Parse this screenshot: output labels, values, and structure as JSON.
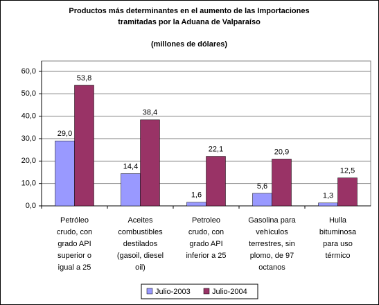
{
  "chart_data": {
    "type": "bar",
    "title": "Productos más determinantes en el aumento de las Importaciones tramitadas por la Aduana de Valparaíso",
    "subtitle": "(millones de dólares)",
    "categories": [
      "Petróleo crudo, con grado API superior o igual a 25",
      "Aceites combustibles destilados (gasoil, diesel oil)",
      "Petroleo crudo, con grado API inferior a 25",
      "Gasolina para vehículos terrestres, sin plomo, de 97 octanos",
      "Hulla bituminosa para uso térmico"
    ],
    "series": [
      {
        "name": "Julio-2003",
        "color": "#9999ff",
        "values": [
          29.0,
          14.4,
          1.6,
          5.6,
          1.3
        ],
        "value_labels": [
          "29,0",
          "14,4",
          "1,6",
          "5,6",
          "1,3"
        ]
      },
      {
        "name": "Julio-2004",
        "color": "#993366",
        "values": [
          53.8,
          38.4,
          22.1,
          20.9,
          12.5
        ],
        "value_labels": [
          "53,8",
          "38,4",
          "22,1",
          "20,9",
          "12,5"
        ]
      }
    ],
    "ylim": [
      0,
      60
    ],
    "yticks": [
      {
        "value": 0,
        "label": "0,0"
      },
      {
        "value": 10,
        "label": "10,0"
      },
      {
        "value": 20,
        "label": "20,0"
      },
      {
        "value": 30,
        "label": "30,0"
      },
      {
        "value": 40,
        "label": "40,0"
      },
      {
        "value": 50,
        "label": "50,0"
      },
      {
        "value": 60,
        "label": "60,0"
      }
    ],
    "grid": true,
    "legend": "bottom"
  }
}
